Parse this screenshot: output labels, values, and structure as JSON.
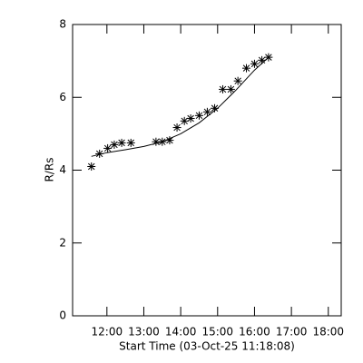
{
  "chart_data": {
    "type": "scatter",
    "ylabel": "R/Rs",
    "xlabel": "Start Time (03-Oct-25 11:18:08)",
    "x": [
      11.58,
      11.8,
      12.02,
      12.2,
      12.4,
      12.65,
      13.33,
      13.5,
      13.7,
      13.9,
      14.1,
      14.27,
      14.5,
      14.72,
      14.92,
      15.14,
      15.36,
      15.55,
      15.78,
      16.0,
      16.2,
      16.38
    ],
    "series": [
      {
        "marker": "asterisk",
        "color": "#000000",
        "values": [
          4.1,
          4.45,
          4.6,
          4.7,
          4.75,
          4.75,
          4.78,
          4.78,
          4.82,
          5.17,
          5.35,
          5.42,
          5.5,
          5.6,
          5.7,
          6.22,
          6.22,
          6.45,
          6.8,
          6.92,
          7.02,
          7.1
        ]
      }
    ],
    "fit": {
      "x": [
        11.58,
        12.0,
        12.5,
        13.0,
        13.5,
        14.0,
        14.5,
        15.0,
        15.5,
        16.0,
        16.38
      ],
      "y": [
        4.38,
        4.48,
        4.56,
        4.65,
        4.78,
        5.0,
        5.3,
        5.7,
        6.2,
        6.75,
        7.1
      ]
    },
    "xlim": [
      11.07,
      18.35
    ],
    "xticks": [
      {
        "value": 12,
        "label": "12:00"
      },
      {
        "value": 13,
        "label": "13:00"
      },
      {
        "value": 14,
        "label": "14:00"
      },
      {
        "value": 15,
        "label": "15:00"
      },
      {
        "value": 16,
        "label": "16:00"
      },
      {
        "value": 17,
        "label": "17:00"
      },
      {
        "value": 18,
        "label": "18:00"
      }
    ],
    "ylim": [
      0,
      8
    ],
    "yticks": [
      0,
      2,
      4,
      6,
      8
    ],
    "grid": false
  }
}
